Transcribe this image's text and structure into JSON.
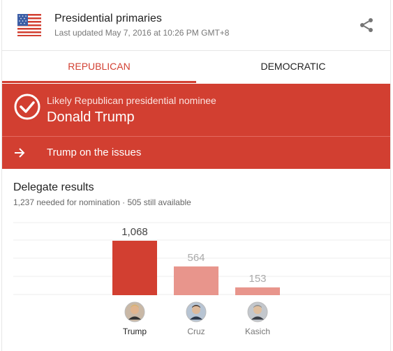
{
  "header": {
    "title": "Presidential primaries",
    "updated": "Last updated May 7, 2016 at 10:26 PM GMT+8",
    "flag_icon": "us-flag-icon",
    "share_icon": "share-icon"
  },
  "tabs": [
    {
      "label": "REPUBLICAN",
      "active": true
    },
    {
      "label": "DEMOCRATIC",
      "active": false
    }
  ],
  "banner": {
    "label": "Likely Republican presidential nominee",
    "name": "Donald Trump",
    "link": "Trump on the issues",
    "color": "#d23f31"
  },
  "delegates": {
    "title": "Delegate results",
    "subtitle": "1,237 needed for nomination · 505 still available"
  },
  "chart_data": {
    "type": "bar",
    "categories": [
      "Trump",
      "Cruz",
      "Kasich"
    ],
    "values": [
      1068,
      564,
      153
    ],
    "value_labels": [
      "1,068",
      "564",
      "153"
    ],
    "colors": [
      "#d23f31",
      "#e8958c",
      "#e8958c"
    ],
    "label_colors": [
      "#444444",
      "#aaaaaa",
      "#aaaaaa"
    ],
    "name_colors": [
      "#222222",
      "#777777",
      "#777777"
    ]
  }
}
